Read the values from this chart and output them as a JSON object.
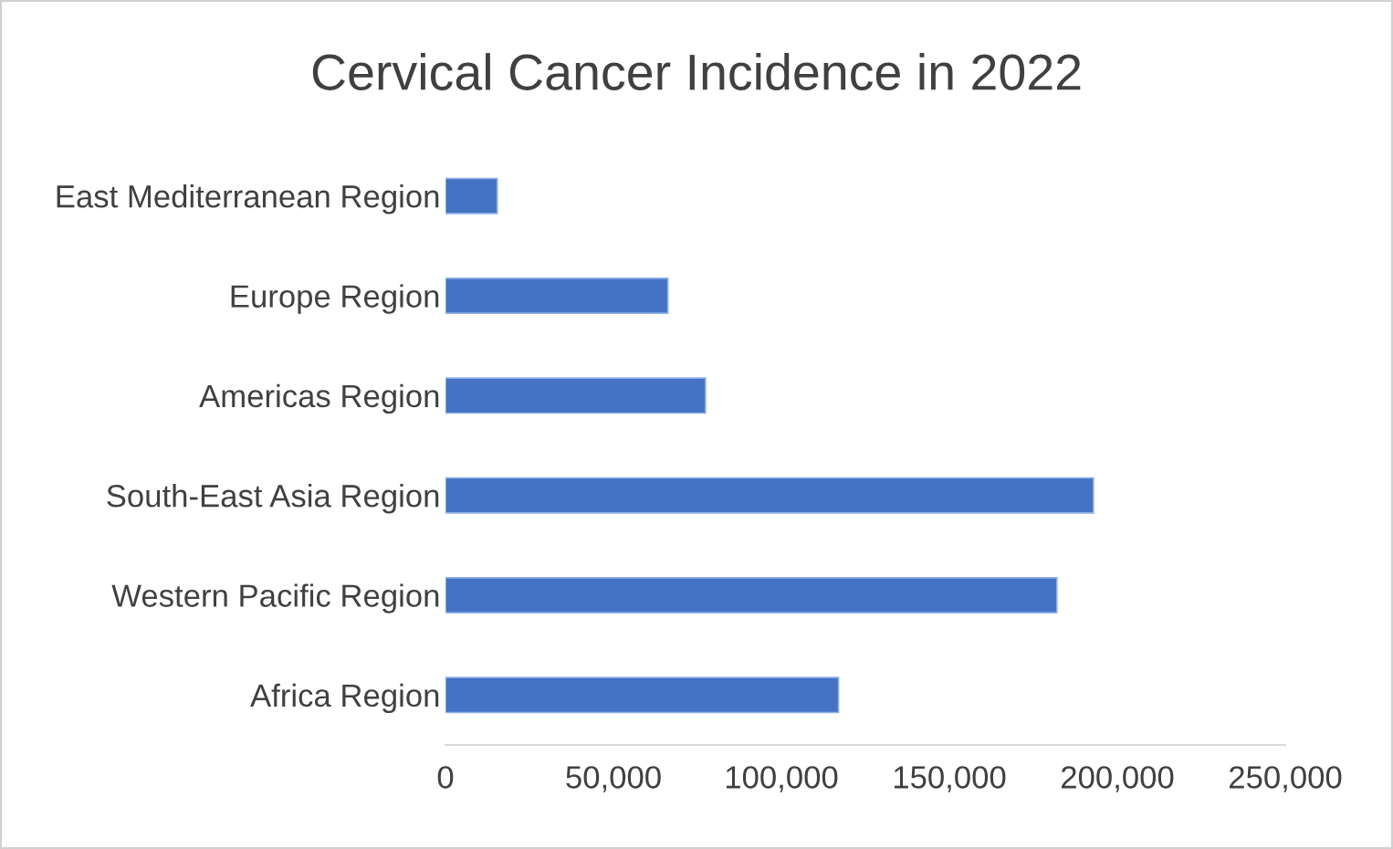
{
  "chart_data": {
    "type": "bar",
    "orientation": "horizontal",
    "title": "Cervical Cancer Incidence in 2022",
    "categories": [
      "East Mediterranean Region",
      "Europe Region",
      "Americas Region",
      "South-East Asia Region",
      "Western Pacific Region",
      "Africa Region"
    ],
    "values": [
      15400,
      66200,
      77400,
      192900,
      182000,
      117000
    ],
    "color": "#4472c4",
    "xlim": [
      0,
      250000
    ],
    "xticks": [
      {
        "value": 0,
        "label": "0"
      },
      {
        "value": 50000,
        "label": "50,000"
      },
      {
        "value": 100000,
        "label": "100,000"
      },
      {
        "value": 150000,
        "label": "150,000"
      },
      {
        "value": 200000,
        "label": "200,000"
      },
      {
        "value": 250000,
        "label": "250,000"
      }
    ],
    "grid": false,
    "legend": false
  }
}
